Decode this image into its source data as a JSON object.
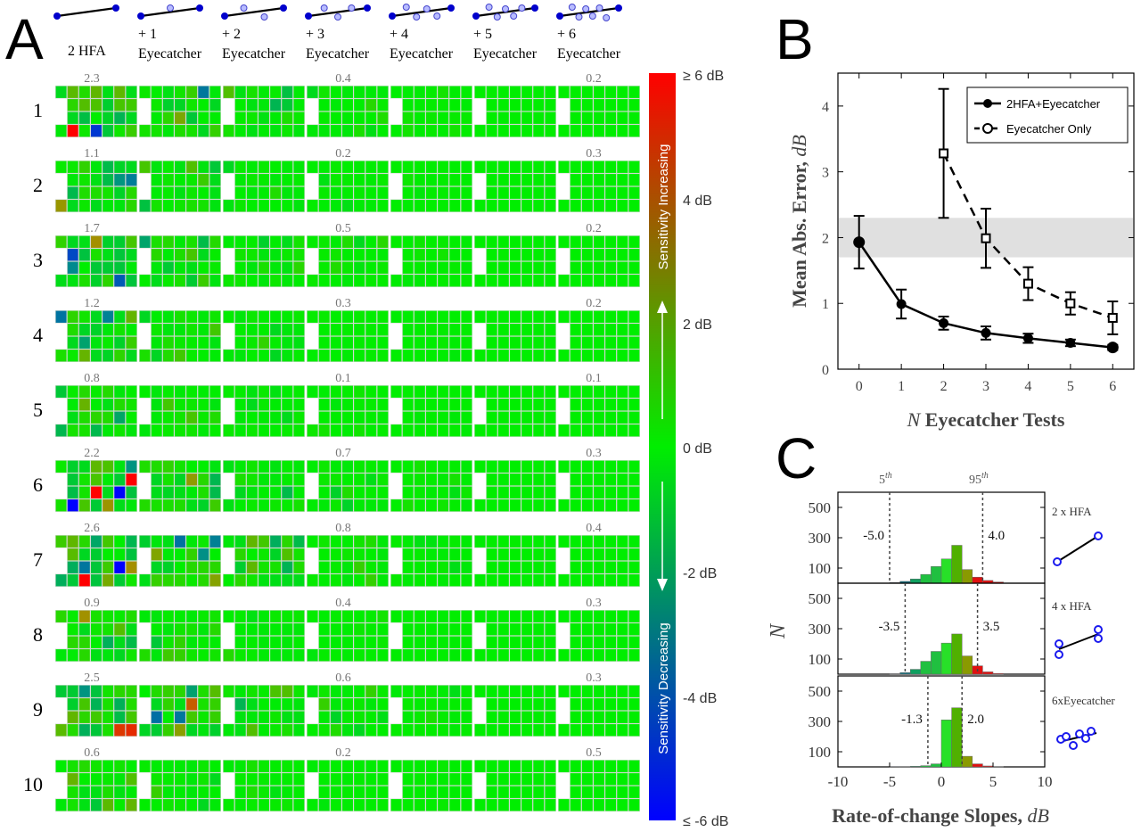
{
  "panel_labels": {
    "a": "A",
    "b": "B",
    "c": "C"
  },
  "panel_a": {
    "columns": [
      {
        "line1": "2 HFA",
        "line2": ""
      },
      {
        "line1": "+ 1",
        "line2": "Eyecatcher"
      },
      {
        "line1": "+ 2",
        "line2": "Eyecatcher"
      },
      {
        "line1": "+ 3",
        "line2": "Eyecatcher"
      },
      {
        "line1": "+ 4",
        "line2": "Eyecatcher"
      },
      {
        "line1": "+ 5",
        "line2": "Eyecatcher"
      },
      {
        "line1": "+ 6",
        "line2": "Eyecatcher"
      }
    ],
    "rows": [
      "1",
      "2",
      "3",
      "4",
      "5",
      "6",
      "7",
      "8",
      "9",
      "10"
    ],
    "errors": [
      {
        "first": "2.3",
        "mid": "0.4",
        "last": "0.2"
      },
      {
        "first": "1.1",
        "mid": "0.2",
        "last": "0.3"
      },
      {
        "first": "1.7",
        "mid": "0.5",
        "last": "0.2"
      },
      {
        "first": "1.2",
        "mid": "0.3",
        "last": "0.2"
      },
      {
        "first": "0.8",
        "mid": "0.1",
        "last": "0.1"
      },
      {
        "first": "2.2",
        "mid": "0.7",
        "last": "0.3"
      },
      {
        "first": "2.6",
        "mid": "0.8",
        "last": "0.4"
      },
      {
        "first": "0.9",
        "mid": "0.4",
        "last": "0.3"
      },
      {
        "first": "2.5",
        "mid": "0.6",
        "last": "0.3"
      },
      {
        "first": "0.6",
        "mid": "0.2",
        "last": "0.5"
      }
    ],
    "colorbar": {
      "ticks": [
        "≥ 6 dB",
        "4 dB",
        "2 dB",
        "0 dB",
        "-2 dB",
        "-4 dB",
        "≤ -6 dB"
      ],
      "increasing_label": "Sensitivity Increasing",
      "decreasing_label": "Sensitivity Decreasing",
      "colors": {
        "high": "#ff0000",
        "mid": "#00ee00",
        "low": "#0000ff"
      }
    }
  },
  "chart_data": [
    {
      "type": "line",
      "panel": "B",
      "x": [
        0,
        1,
        2,
        3,
        4,
        5,
        6
      ],
      "xlabel_italic": "N",
      "xlabel": "Eyecatcher Tests",
      "ylabel": "Mean Abs. Error,",
      "ylabel_unit": "dB",
      "xlim": [
        -0.5,
        6.5
      ],
      "ylim": [
        0,
        4.5
      ],
      "xticks": [
        "0",
        "1",
        "2",
        "3",
        "4",
        "5",
        "6"
      ],
      "yticks": [
        "0",
        "1",
        "2",
        "3",
        "4"
      ],
      "shaded_band": [
        1.7,
        2.3
      ],
      "series": [
        {
          "name": "2HFA+Eyecatcher",
          "x": [
            0,
            1,
            2,
            3,
            4,
            5,
            6
          ],
          "values": [
            1.93,
            0.99,
            0.7,
            0.55,
            0.47,
            0.4,
            0.33
          ],
          "err": [
            0.4,
            0.22,
            0.1,
            0.1,
            0.07,
            0.05,
            0.04
          ]
        },
        {
          "name": "Eyecatcher Only",
          "x": [
            2,
            3,
            4,
            5,
            6
          ],
          "values": [
            3.28,
            1.99,
            1.3,
            1.0,
            0.78
          ],
          "err": [
            0.98,
            0.45,
            0.25,
            0.17,
            0.25
          ]
        }
      ]
    },
    {
      "type": "bar",
      "panel": "C",
      "xlabel": "Rate-of-change Slopes,",
      "xlabel_unit": "dB",
      "ylabel": "N",
      "xlim": [
        -10,
        10
      ],
      "ylim": [
        0,
        600
      ],
      "xticks": [
        "-10",
        "-5",
        "0",
        "5",
        "10"
      ],
      "yticks": [
        "100",
        "300",
        "500"
      ],
      "bin_edges": [
        -5,
        -4,
        -3,
        -2,
        -1,
        0,
        1,
        2,
        3,
        4,
        5
      ],
      "percentile_labels": {
        "p5": "5",
        "p95": "95",
        "suffix": "th"
      },
      "series": [
        {
          "name": "2 x HFA",
          "values": [
            4,
            12,
            28,
            58,
            110,
            160,
            250,
            90,
            40,
            18,
            8
          ],
          "p5": -5.0,
          "p95": 4.0,
          "p5_label": "-5.0",
          "p95_label": "4.0"
        },
        {
          "name": "4 x HFA",
          "values": [
            3,
            10,
            32,
            85,
            150,
            205,
            265,
            120,
            55,
            15,
            5
          ],
          "p5": -3.5,
          "p95": 3.5,
          "p5_label": "-3.5",
          "p95_label": "3.5"
        },
        {
          "name": "6xEyecatcher",
          "values": [
            1,
            2,
            4,
            8,
            20,
            310,
            390,
            70,
            20,
            6,
            2
          ],
          "p5": -1.3,
          "p95": 2.0,
          "p5_label": "-1.3",
          "p95_label": "2.0"
        }
      ]
    }
  ]
}
